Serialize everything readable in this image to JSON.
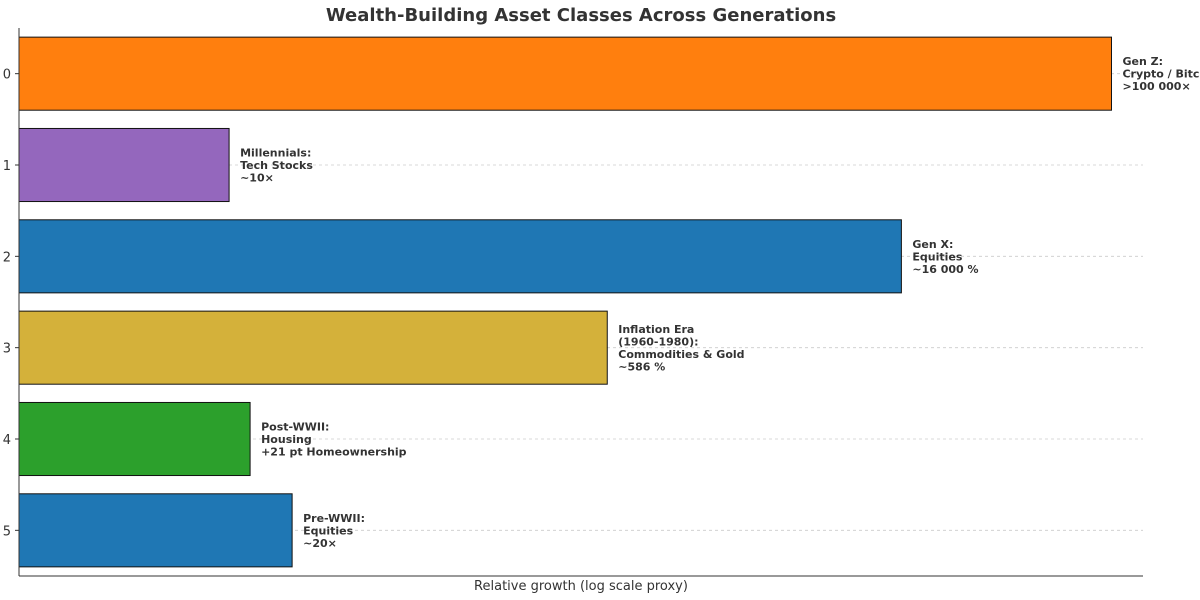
{
  "chart_data": {
    "type": "bar",
    "orientation": "horizontal",
    "title": "Wealth-Building Asset Classes Across Generations",
    "xlabel": "Relative growth (log scale proxy)",
    "ylabel": "",
    "x_ticks_shown": false,
    "grid": "horizontal dashed",
    "categories": [
      "0",
      "1",
      "2",
      "3",
      "4",
      "5"
    ],
    "values": [
      5.2,
      1.0,
      4.2,
      2.8,
      1.1,
      1.3
    ],
    "value_units": "relative growth (log scale proxy)",
    "xlim": [
      0,
      5.35
    ],
    "colors": [
      "#ff7f0e",
      "#9467bd",
      "#1f77b4",
      "#d4b13a",
      "#2ca02c",
      "#1f77b4"
    ],
    "labels": [
      [
        "Gen Z:",
        "Crypto / Bitcoin",
        ">100 000×"
      ],
      [
        "Millennials:",
        "Tech Stocks",
        "~10×"
      ],
      [
        "Gen X:",
        "Equities",
        "~16 000 %"
      ],
      [
        "Inflation Era",
        "(1960-1980):",
        "Commodities & Gold",
        "~586 %"
      ],
      [
        "Post-WWII:",
        "Housing",
        "+21 pt Homeownership"
      ],
      [
        "Pre-WWII:",
        "Equities",
        "~20×"
      ]
    ]
  }
}
